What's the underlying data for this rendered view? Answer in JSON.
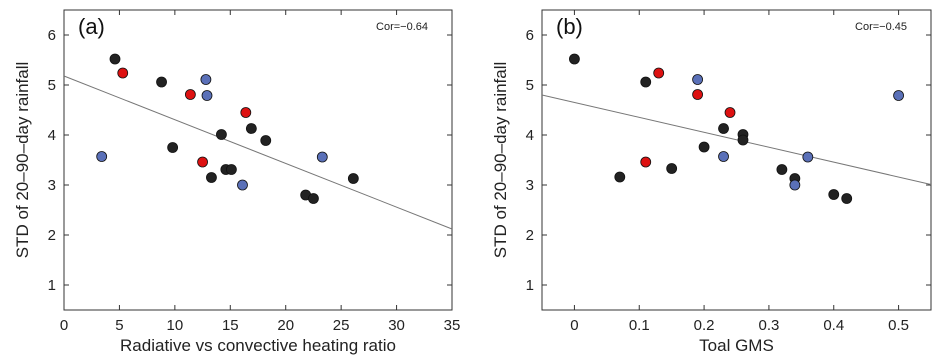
{
  "chart_data": [
    {
      "type": "scatter",
      "panel_label": "(a)",
      "annotation": "Cor=−0.64",
      "xlabel": "Radiative vs convective heating ratio",
      "ylabel": "STD of 20–90–day rainfall",
      "xlim": [
        0,
        35
      ],
      "ylim": [
        0.5,
        6.5
      ],
      "xticks": [
        0,
        5,
        10,
        15,
        20,
        25,
        30,
        35
      ],
      "yticks": [
        1,
        2,
        3,
        4,
        5,
        6
      ],
      "grid": false,
      "regression_line": {
        "x": [
          0,
          35
        ],
        "y": [
          5.18,
          2.12
        ],
        "color": "#777777"
      },
      "series": [
        {
          "color": "#222222",
          "points": [
            {
              "x": 4.6,
              "y": 5.52
            },
            {
              "x": 8.8,
              "y": 5.06
            },
            {
              "x": 9.8,
              "y": 3.75
            },
            {
              "x": 13.3,
              "y": 3.15
            },
            {
              "x": 14.2,
              "y": 4.01
            },
            {
              "x": 14.6,
              "y": 3.31
            },
            {
              "x": 15.1,
              "y": 3.31
            },
            {
              "x": 16.9,
              "y": 4.13
            },
            {
              "x": 18.2,
              "y": 3.89
            },
            {
              "x": 21.8,
              "y": 2.8
            },
            {
              "x": 22.5,
              "y": 2.73
            },
            {
              "x": 26.1,
              "y": 3.13
            }
          ]
        },
        {
          "color": "#dd1111",
          "points": [
            {
              "x": 5.3,
              "y": 5.24
            },
            {
              "x": 11.4,
              "y": 4.81
            },
            {
              "x": 12.5,
              "y": 3.46
            },
            {
              "x": 16.4,
              "y": 4.45
            }
          ]
        },
        {
          "color": "#5a70b8",
          "points": [
            {
              "x": 3.4,
              "y": 3.57
            },
            {
              "x": 12.8,
              "y": 5.11
            },
            {
              "x": 12.9,
              "y": 4.79
            },
            {
              "x": 16.1,
              "y": 3.0
            },
            {
              "x": 23.3,
              "y": 3.56
            }
          ]
        }
      ]
    },
    {
      "type": "scatter",
      "panel_label": "(b)",
      "annotation": "Cor=−0.45",
      "xlabel": "Toal GMS",
      "ylabel": "STD of 20–90–day rainfall",
      "xlim": [
        -0.05,
        0.55
      ],
      "ylim": [
        0.5,
        6.5
      ],
      "xticks": [
        0,
        0.1,
        0.2,
        0.3,
        0.4,
        0.5
      ],
      "yticks": [
        1,
        2,
        3,
        4,
        5,
        6
      ],
      "grid": false,
      "regression_line": {
        "x": [
          -0.05,
          0.55
        ],
        "y": [
          4.8,
          3.01
        ],
        "color": "#777777"
      },
      "series": [
        {
          "color": "#222222",
          "points": [
            {
              "x": 0.0,
              "y": 5.52
            },
            {
              "x": 0.07,
              "y": 3.16
            },
            {
              "x": 0.11,
              "y": 5.06
            },
            {
              "x": 0.15,
              "y": 3.33
            },
            {
              "x": 0.2,
              "y": 3.76
            },
            {
              "x": 0.23,
              "y": 4.13
            },
            {
              "x": 0.26,
              "y": 4.01
            },
            {
              "x": 0.26,
              "y": 3.9
            },
            {
              "x": 0.32,
              "y": 3.31
            },
            {
              "x": 0.34,
              "y": 3.13
            },
            {
              "x": 0.4,
              "y": 2.81
            },
            {
              "x": 0.42,
              "y": 2.73
            }
          ]
        },
        {
          "color": "#dd1111",
          "points": [
            {
              "x": 0.11,
              "y": 3.46
            },
            {
              "x": 0.13,
              "y": 5.24
            },
            {
              "x": 0.19,
              "y": 4.81
            },
            {
              "x": 0.24,
              "y": 4.45
            }
          ]
        },
        {
          "color": "#5a70b8",
          "points": [
            {
              "x": 0.19,
              "y": 5.11
            },
            {
              "x": 0.23,
              "y": 3.57
            },
            {
              "x": 0.34,
              "y": 3.0
            },
            {
              "x": 0.36,
              "y": 3.56
            },
            {
              "x": 0.5,
              "y": 4.79
            }
          ]
        }
      ]
    }
  ]
}
